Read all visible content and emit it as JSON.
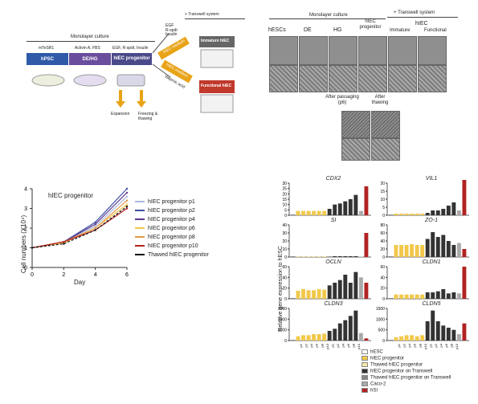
{
  "schematic": {
    "header_monolayer": "Monolayer culture",
    "header_transwell": "+ Transwell system",
    "media": [
      "mTeSR1",
      "Activin A, FBS",
      "EGF, R-spdt, Insulin"
    ],
    "stages": [
      "hPSC",
      "DE/HG",
      "hIEC progenitor"
    ],
    "upper_branch_media": "EGF\nR-spdt\nInsulin",
    "medium_label": "hIEC medium",
    "lower_branch_media": "Valproic acid",
    "immature_label": "Immature hIEC",
    "functional_label": "Functional hIEC",
    "expansion": "Expansion",
    "freezing": "Freezing & thawing"
  },
  "micrographs": {
    "header_monolayer": "Monolayer culture",
    "header_transwell": "+ Transwell system",
    "hiec_group": "hIEC",
    "columns": [
      "hESCs",
      "DE",
      "HG",
      "hIEC progenitor",
      "Immature",
      "Functional"
    ],
    "after_passaging": "After passaging (p6)",
    "after_thawing": "After thawing"
  },
  "growth": {
    "inset_title": "hIEC progenitor",
    "ylabel": "Cell numbers (X10⁴)",
    "xlabel": "Day",
    "xticks": [
      "0",
      "2",
      "4",
      "6"
    ],
    "yticks": [
      "0",
      "1",
      "2",
      "3",
      "4"
    ],
    "legend": [
      "hIEC progenitor p1",
      "hIEC progenitor p2",
      "hIEC progenitor p4",
      "hIEC progenitor p6",
      "hIEC progenitor p8",
      "hIEC progenitor p10",
      "Thawed hIEC progenitor"
    ]
  },
  "expression": {
    "ylabel": "Relative gene expression  to hESC",
    "genes": [
      "CDX2",
      "VIL1",
      "SI",
      "ZO-1",
      "OCLN",
      "CLDN1",
      "CLDN3",
      "CLDN5"
    ],
    "legend": [
      "hESC",
      "hIEC progenitor",
      "Thawed hIEC progenitor",
      "hIEC progenitor on Transwell",
      "Thawed hIEC progenitor on Transwell",
      "Caco-2",
      "hSI"
    ],
    "xcat": [
      "p1",
      "p2",
      "p4",
      "p6",
      "p8",
      "p10"
    ]
  },
  "colors": {
    "hpsc": "#2e5aa8",
    "de": "#6a4d9c",
    "prog": "#4a4a8a",
    "immature": "#666666",
    "functional": "#c0392b",
    "medium": "#e8a317",
    "yellow": "#f2c84b",
    "lightyellow": "#f6e7a6",
    "dark": "#333333",
    "grey": "#aaaaaa",
    "red": "#b22222"
  },
  "chart_data": [
    {
      "type": "line",
      "title": "hIEC progenitor",
      "xlabel": "Day",
      "ylabel": "Cell numbers (X10⁴)",
      "x": [
        0,
        2,
        4,
        6
      ],
      "ylim": [
        0,
        4
      ],
      "xlim": [
        0,
        6
      ],
      "series": [
        {
          "name": "hIEC progenitor p1",
          "values": [
            1.0,
            1.3,
            2.1,
            3.6
          ],
          "color": "#aab7e0",
          "dash": false
        },
        {
          "name": "hIEC progenitor p2",
          "values": [
            1.0,
            1.3,
            2.3,
            4.0
          ],
          "color": "#3d4fa8",
          "dash": false
        },
        {
          "name": "hIEC progenitor p4",
          "values": [
            1.0,
            1.3,
            2.2,
            3.8
          ],
          "color": "#5b3a8c",
          "dash": false
        },
        {
          "name": "hIEC progenitor p6",
          "values": [
            1.0,
            1.25,
            2.0,
            3.2
          ],
          "color": "#f2c84b",
          "dash": false
        },
        {
          "name": "hIEC progenitor p8",
          "values": [
            1.0,
            1.3,
            2.0,
            3.4
          ],
          "color": "#e39b4b",
          "dash": false
        },
        {
          "name": "hIEC progenitor p10",
          "values": [
            1.0,
            1.3,
            1.9,
            3.0
          ],
          "color": "#b22222",
          "dash": false
        },
        {
          "name": "Thawed hIEC progenitor",
          "values": [
            1.0,
            1.2,
            1.9,
            3.1
          ],
          "color": "#111111",
          "dash": true
        }
      ]
    },
    {
      "type": "bar",
      "genes": [
        {
          "name": "CDX2",
          "yticks": [
            0,
            5,
            10,
            15,
            20,
            25,
            30
          ],
          "ymax": 30,
          "values": [
            0.2,
            4,
            4,
            4,
            4,
            4,
            4,
            6,
            10,
            11,
            13,
            15,
            19,
            4,
            27
          ]
        },
        {
          "name": "VIL1",
          "yticks": [
            0,
            5,
            10,
            15,
            20
          ],
          "ymax": 20,
          "values": [
            0.2,
            1,
            1,
            1,
            1,
            1,
            1,
            1.5,
            3,
            3,
            4,
            6,
            8,
            3,
            22
          ]
        },
        {
          "name": "SI",
          "yticks": [
            0,
            10,
            20,
            30,
            40
          ],
          "ymax": 40,
          "values": [
            0.2,
            0.3,
            0.3,
            0.3,
            0.3,
            0.3,
            0.3,
            0.5,
            1,
            1,
            1,
            1,
            1,
            0.5,
            30
          ]
        },
        {
          "name": "ZO-1",
          "yticks": [
            0,
            20,
            40,
            60,
            80
          ],
          "ymax": 80,
          "values": [
            1,
            30,
            30,
            30,
            32,
            30,
            30,
            45,
            62,
            50,
            55,
            40,
            30,
            35,
            20
          ]
        },
        {
          "name": "OCLN",
          "yticks": [
            0,
            20,
            40,
            60
          ],
          "ymax": 60,
          "values": [
            1,
            15,
            18,
            16,
            16,
            18,
            17,
            25,
            30,
            35,
            45,
            30,
            50,
            40,
            30
          ]
        },
        {
          "name": "CLDN1",
          "yticks": [
            0,
            20,
            40,
            60
          ],
          "ymax": 60,
          "values": [
            1,
            8,
            8,
            8,
            8,
            8,
            8,
            12,
            12,
            14,
            18,
            10,
            12,
            10,
            60
          ]
        },
        {
          "name": "CLDN3",
          "yticks": [
            0,
            1000,
            2000,
            3000
          ],
          "ymax": 3000,
          "values": [
            10,
            400,
            500,
            500,
            600,
            600,
            650,
            900,
            1100,
            1600,
            1900,
            2300,
            2800,
            700,
            200
          ]
        },
        {
          "name": "CLDN5",
          "yticks": [
            0,
            500,
            1000,
            1500
          ],
          "ymax": 1500,
          "values": [
            5,
            150,
            200,
            250,
            250,
            200,
            250,
            900,
            1400,
            900,
            700,
            600,
            500,
            300,
            800
          ]
        }
      ],
      "bar_groups": [
        "hESC",
        "hIEC progenitor x6",
        "hIEC progenitor on Transwell x6",
        "Caco-2",
        "hSI"
      ]
    }
  ]
}
